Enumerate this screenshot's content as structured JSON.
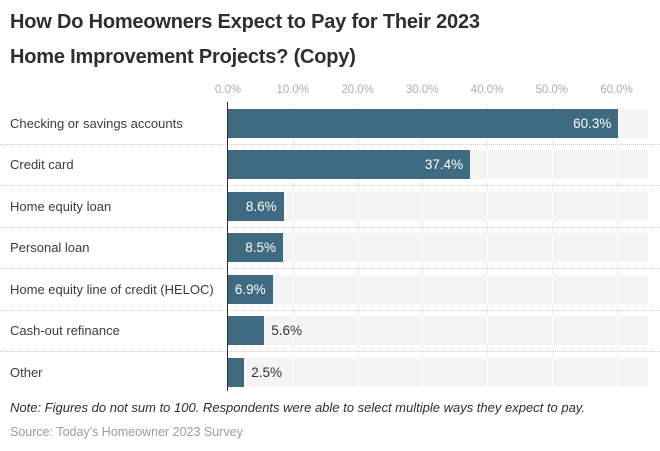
{
  "title": "How Do Homeowners Expect to Pay for Their 2023 Home Improvement Projects? (Copy)",
  "note": "Note: Figures do not sum to 100. Respondents were able to select multiple ways they expect to pay.",
  "source": "Source: Today's Homeowner 2023 Survey",
  "chart_data": {
    "type": "bar",
    "orientation": "horizontal",
    "title": "How Do Homeowners Expect to Pay for Their 2023 Home Improvement Projects? (Copy)",
    "categories": [
      "Checking or savings accounts",
      "Credit card",
      "Home equity loan",
      "Personal loan",
      "Home equity line of credit (HELOC)",
      "Cash-out refinance",
      "Other"
    ],
    "values": [
      60.3,
      37.4,
      8.6,
      8.5,
      6.9,
      5.6,
      2.5
    ],
    "value_labels": [
      "60.3%",
      "37.4%",
      "8.6%",
      "8.5%",
      "6.9%",
      "5.6%",
      "2.5%"
    ],
    "x_ticks": [
      "0.0%",
      "10.0%",
      "20.0%",
      "30.0%",
      "40.0%",
      "50.0%",
      "60.0%"
    ],
    "x_tick_values": [
      0,
      10,
      20,
      30,
      40,
      50,
      60
    ],
    "xlim": [
      0,
      64.9
    ],
    "grid": true,
    "legend": false,
    "bar_color": "#3e6a82",
    "row_bg_color": "#f4f4f4",
    "value_label_inside_color": "#ffffff",
    "value_label_outside_color": "#333333"
  }
}
